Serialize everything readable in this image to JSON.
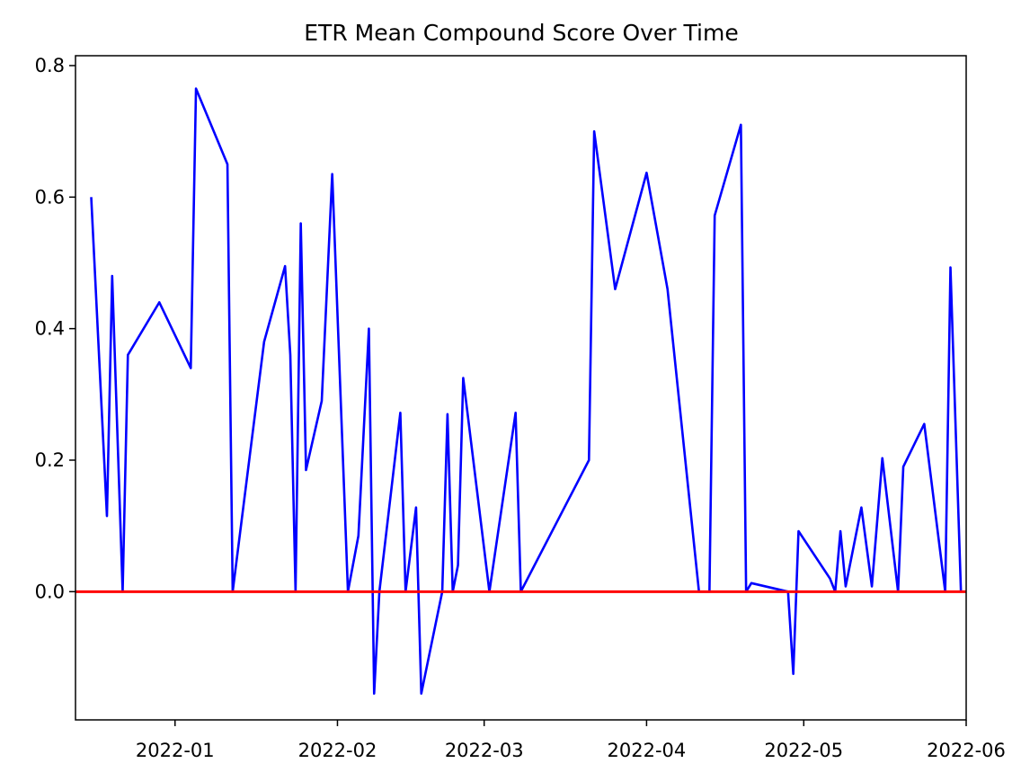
{
  "chart_data": {
    "type": "line",
    "title": "ETR Mean Compound Score Over Time",
    "xlabel": "",
    "ylabel": "",
    "xlim": [
      "2021-12-13",
      "2022-06-01"
    ],
    "ylim": [
      -0.195,
      0.815
    ],
    "grid": false,
    "legend": "none",
    "x_ticks": [
      {
        "date": "2022-01-01",
        "label": "2022-01"
      },
      {
        "date": "2022-02-01",
        "label": "2022-02"
      },
      {
        "date": "2022-03-01",
        "label": "2022-03"
      },
      {
        "date": "2022-04-01",
        "label": "2022-04"
      },
      {
        "date": "2022-05-01",
        "label": "2022-05"
      },
      {
        "date": "2022-06-01",
        "label": "2022-06"
      }
    ],
    "y_ticks": [
      {
        "value": 0.0,
        "label": "0.0"
      },
      {
        "value": 0.2,
        "label": "0.2"
      },
      {
        "value": 0.4,
        "label": "0.4"
      },
      {
        "value": 0.6,
        "label": "0.6"
      },
      {
        "value": 0.8,
        "label": "0.8"
      }
    ],
    "reference_line": {
      "y": 0.0,
      "color": "#ff0000"
    },
    "series": [
      {
        "color": "#0000ff",
        "points": [
          [
            "2021-12-16",
            0.6
          ],
          [
            "2021-12-19",
            0.115
          ],
          [
            "2021-12-20",
            0.48
          ],
          [
            "2021-12-22",
            0.0
          ],
          [
            "2021-12-23",
            0.36
          ],
          [
            "2021-12-29",
            0.44
          ],
          [
            "2022-01-04",
            0.34
          ],
          [
            "2022-01-05",
            0.765
          ],
          [
            "2022-01-11",
            0.65
          ],
          [
            "2022-01-12",
            0.0
          ],
          [
            "2022-01-18",
            0.38
          ],
          [
            "2022-01-22",
            0.495
          ],
          [
            "2022-01-23",
            0.36
          ],
          [
            "2022-01-24",
            0.0
          ],
          [
            "2022-01-25",
            0.56
          ],
          [
            "2022-01-26",
            0.185
          ],
          [
            "2022-01-29",
            0.29
          ],
          [
            "2022-01-31",
            0.635
          ],
          [
            "2022-02-03",
            0.0
          ],
          [
            "2022-02-05",
            0.085
          ],
          [
            "2022-02-07",
            0.4
          ],
          [
            "2022-02-08",
            -0.155
          ],
          [
            "2022-02-09",
            0.0
          ],
          [
            "2022-02-13",
            0.272
          ],
          [
            "2022-02-14",
            0.0
          ],
          [
            "2022-02-16",
            0.128
          ],
          [
            "2022-02-17",
            -0.155
          ],
          [
            "2022-02-21",
            0.0
          ],
          [
            "2022-02-22",
            0.27
          ],
          [
            "2022-02-23",
            0.0
          ],
          [
            "2022-02-24",
            0.04
          ],
          [
            "2022-02-25",
            0.325
          ],
          [
            "2022-03-02",
            0.0
          ],
          [
            "2022-03-07",
            0.272
          ],
          [
            "2022-03-08",
            0.0
          ],
          [
            "2022-03-21",
            0.2
          ],
          [
            "2022-03-22",
            0.7
          ],
          [
            "2022-03-26",
            0.46
          ],
          [
            "2022-04-01",
            0.637
          ],
          [
            "2022-04-05",
            0.46
          ],
          [
            "2022-04-11",
            0.0
          ],
          [
            "2022-04-13",
            0.0
          ],
          [
            "2022-04-14",
            0.572
          ],
          [
            "2022-04-19",
            0.71
          ],
          [
            "2022-04-20",
            0.0
          ],
          [
            "2022-04-21",
            0.013
          ],
          [
            "2022-04-28",
            0.0
          ],
          [
            "2022-04-29",
            -0.125
          ],
          [
            "2022-04-30",
            0.092
          ],
          [
            "2022-05-06",
            0.02
          ],
          [
            "2022-05-07",
            0.0
          ],
          [
            "2022-05-08",
            0.092
          ],
          [
            "2022-05-09",
            0.008
          ],
          [
            "2022-05-12",
            0.128
          ],
          [
            "2022-05-14",
            0.008
          ],
          [
            "2022-05-16",
            0.203
          ],
          [
            "2022-05-19",
            0.0
          ],
          [
            "2022-05-20",
            0.19
          ],
          [
            "2022-05-24",
            0.255
          ],
          [
            "2022-05-28",
            0.0
          ],
          [
            "2022-05-29",
            0.493
          ],
          [
            "2022-05-31",
            0.0
          ]
        ]
      }
    ]
  }
}
